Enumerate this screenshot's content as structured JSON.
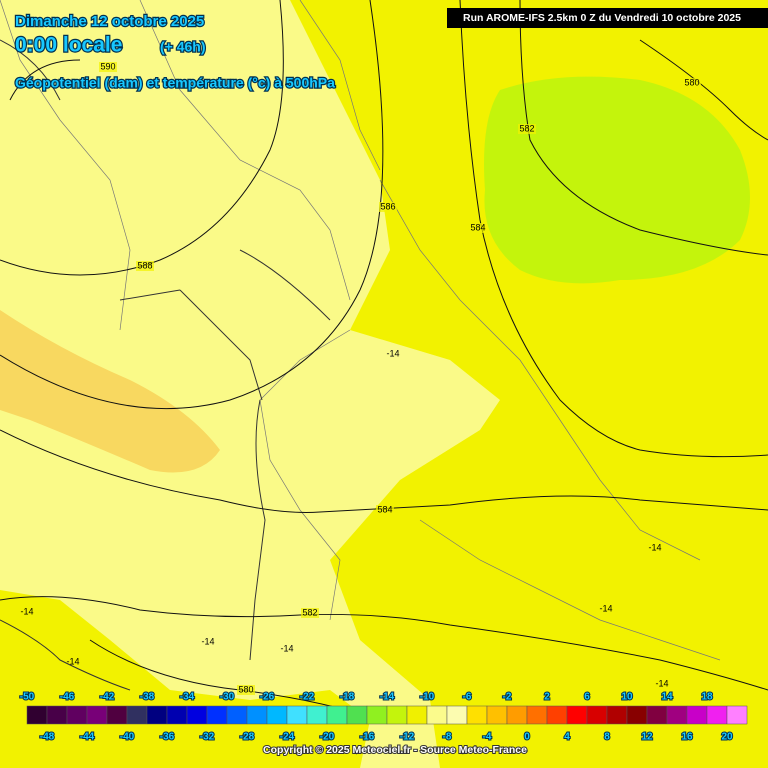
{
  "header": {
    "title": "Dimanche 12 octobre 2025",
    "time": "0:00 locale",
    "offset": "(+ 46h)",
    "subtitle": "Géopotentiel (dam) et température (°c) à 500hPa"
  },
  "run": "Run AROME-IFS 2.5km 0 Z du Vendredi 10 octobre 2025",
  "contour_labels": [
    "590",
    "588",
    "586",
    "584",
    "584",
    "582",
    "580",
    "582",
    "580"
  ],
  "temperature_labels": [
    "-14",
    "-14",
    "-14",
    "-14",
    "-14",
    "-14",
    "-14",
    "-14"
  ],
  "colorbar": {
    "top_labels": [
      -50,
      -46,
      -42,
      -38,
      -34,
      -30,
      -26,
      -22,
      -18,
      -14,
      -10,
      -6,
      -2,
      2,
      6,
      10,
      14,
      18
    ],
    "bottom_labels": [
      -48,
      -44,
      -40,
      -36,
      -32,
      -28,
      -24,
      -20,
      -16,
      -12,
      -8,
      -4,
      0,
      4,
      8,
      12,
      16,
      20
    ],
    "colors": [
      "#300030",
      "#480048",
      "#600060",
      "#780078",
      "#500040",
      "#303060",
      "#000080",
      "#0000b0",
      "#0000e0",
      "#0030ff",
      "#0060ff",
      "#0090ff",
      "#00b8ff",
      "#40e0ff",
      "#40f0d0",
      "#40f090",
      "#50e050",
      "#90f020",
      "#c4f40c",
      "#f0f000",
      "#fbfb8c",
      "#fcfcb0",
      "#ffe000",
      "#ffc000",
      "#ff9c00",
      "#ff7000",
      "#ff4000",
      "#ff0000",
      "#d80000",
      "#b00000",
      "#880000",
      "#800040",
      "#a00080",
      "#c800c8",
      "#f020f0",
      "#ff80ff"
    ]
  },
  "copyright": "Copyright © 2025 Meteociel.fr - Source Meteo-France"
}
